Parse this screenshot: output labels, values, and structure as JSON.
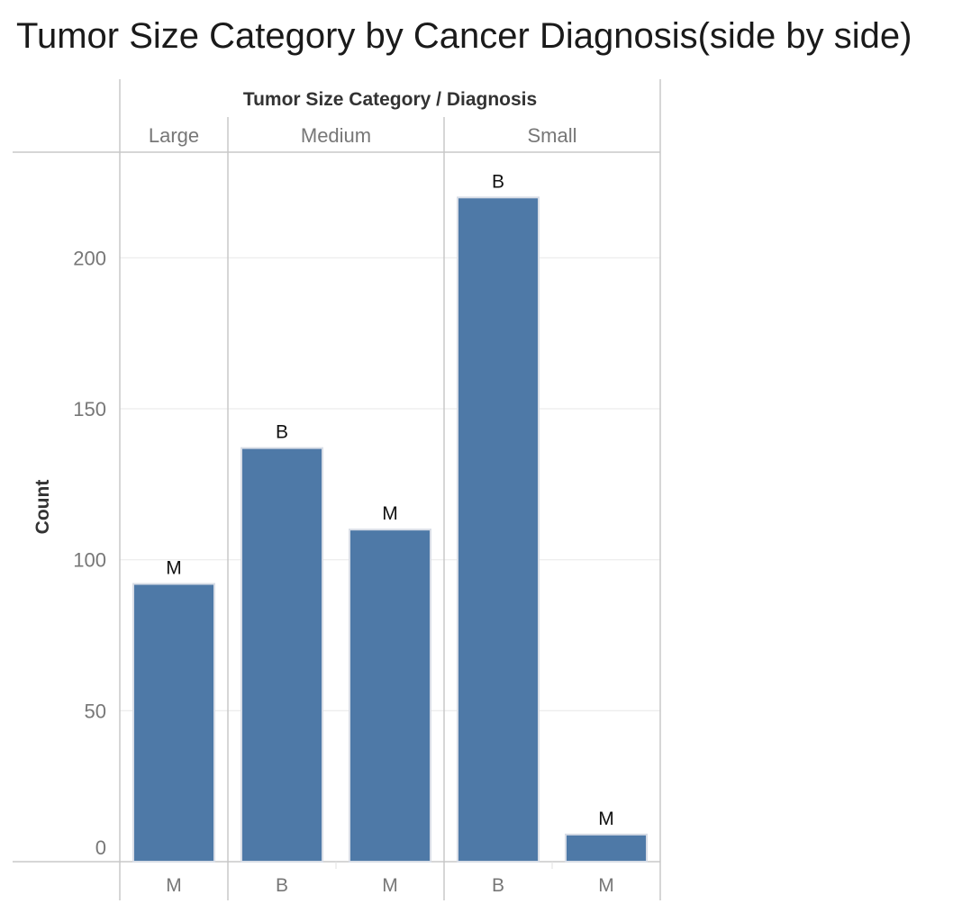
{
  "title": "Tumor Size Category by Cancer Diagnosis(side by side)",
  "chart_data": {
    "type": "bar",
    "column_header": "Tumor Size Category  /  Diagnosis",
    "ylabel": "Count",
    "ylim": [
      0,
      235
    ],
    "yticks": [
      0,
      50,
      100,
      150,
      200
    ],
    "grid": true,
    "bar_color": "#4e79a7",
    "groups": [
      {
        "label": "Large",
        "bars": [
          {
            "category": "M",
            "value": 92
          }
        ]
      },
      {
        "label": "Medium",
        "bars": [
          {
            "category": "B",
            "value": 137
          },
          {
            "category": "M",
            "value": 110
          }
        ]
      },
      {
        "label": "Small",
        "bars": [
          {
            "category": "B",
            "value": 220
          },
          {
            "category": "M",
            "value": 9
          }
        ]
      }
    ]
  }
}
